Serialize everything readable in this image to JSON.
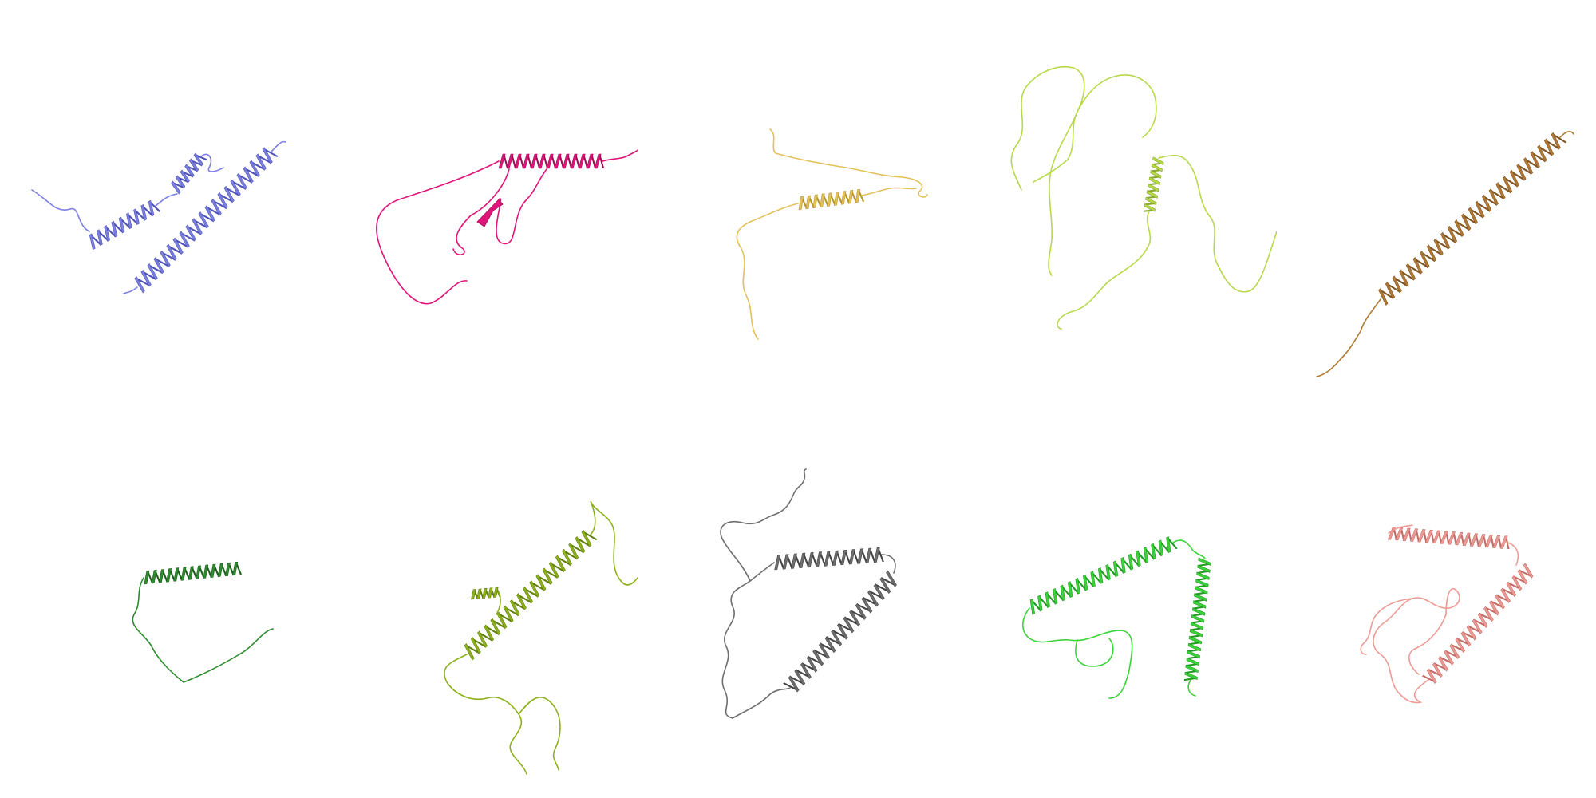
{
  "figure": {
    "background": "#ffffff",
    "structures": [
      {
        "index": 1,
        "color": "#7b7fe0",
        "shadow": "#4f53b8",
        "motif": "two-helices"
      },
      {
        "index": 2,
        "color": "#e0157a",
        "shadow": "#a30d58",
        "motif": "helix-loop-strand"
      },
      {
        "index": 3,
        "color": "#e3c15a",
        "shadow": "#b9952e",
        "motif": "short-helix-coil"
      },
      {
        "index": 4,
        "color": "#b6d94a",
        "shadow": "#8aa92c",
        "motif": "short-helix-long-coil"
      },
      {
        "index": 5,
        "color": "#b07a35",
        "shadow": "#7f5420",
        "motif": "long-helix"
      },
      {
        "index": 6,
        "color": "#2e8b2e",
        "shadow": "#1c5f1c",
        "motif": "helix-coil"
      },
      {
        "index": 7,
        "color": "#8db11a",
        "shadow": "#637f0d",
        "motif": "helix-coil"
      },
      {
        "index": 8,
        "color": "#6e6e6e",
        "shadow": "#444444",
        "motif": "helix-hairpin-coil"
      },
      {
        "index": 9,
        "color": "#3ad43a",
        "shadow": "#229a22",
        "motif": "helix-hairpin-coil"
      },
      {
        "index": 10,
        "color": "#ee9a94",
        "shadow": "#c46c66",
        "motif": "helix-hairpin-coil"
      }
    ]
  }
}
